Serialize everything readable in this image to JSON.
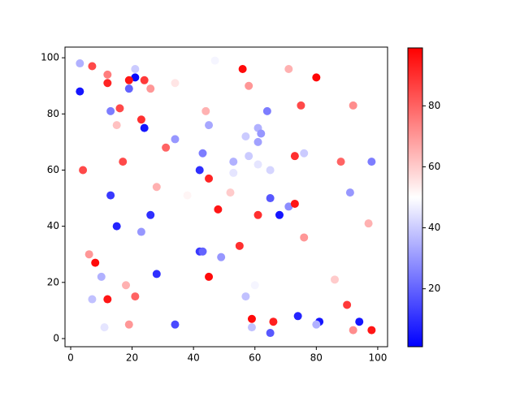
{
  "chart_data": {
    "type": "scatter",
    "x": [
      3,
      7,
      3,
      12,
      12,
      21,
      21,
      19,
      24,
      26,
      19,
      34,
      47,
      56,
      71,
      80,
      58,
      13,
      16,
      23,
      24,
      15,
      44,
      45,
      34,
      31,
      64,
      75,
      92,
      61,
      62,
      57,
      61,
      76,
      73,
      58,
      53,
      61,
      65,
      53,
      43,
      11,
      17,
      42,
      45,
      88,
      98,
      4,
      28,
      38,
      52,
      13,
      65,
      91,
      71,
      73,
      48,
      26,
      61,
      68,
      15,
      97,
      23,
      76,
      42,
      43,
      55,
      49,
      6,
      8,
      28,
      45,
      10,
      86,
      18,
      60,
      57,
      7,
      21,
      12,
      90,
      74,
      59,
      66,
      81,
      94,
      34,
      19,
      11,
      59,
      80,
      92,
      98,
      65
    ],
    "y": [
      98,
      97,
      88,
      94,
      91,
      96,
      93,
      92,
      92,
      89,
      89,
      91,
      99,
      96,
      96,
      93,
      90,
      81,
      82,
      78,
      75,
      76,
      81,
      76,
      71,
      68,
      81,
      83,
      83,
      75,
      73,
      72,
      70,
      66,
      65,
      65,
      63,
      62,
      60,
      59,
      66,
      65,
      63,
      60,
      57,
      63,
      63,
      60,
      54,
      51,
      52,
      51,
      50,
      52,
      47,
      48,
      46,
      44,
      44,
      44,
      40,
      41,
      38,
      36,
      31,
      31,
      33,
      29,
      30,
      27,
      23,
      22,
      22,
      21,
      19,
      19,
      15,
      14,
      15,
      14,
      12,
      8,
      7,
      6,
      6,
      6,
      5,
      5,
      4,
      4,
      5,
      3,
      3,
      2
    ],
    "c": [
      35,
      85,
      5,
      75,
      92,
      40,
      3,
      95,
      88,
      70,
      20,
      55,
      48,
      97,
      65,
      98,
      70,
      25,
      85,
      90,
      5,
      62,
      65,
      33,
      30,
      80,
      25,
      85,
      72,
      35,
      30,
      40,
      32,
      40,
      90,
      40,
      35,
      45,
      42,
      45,
      25,
      50,
      85,
      10,
      92,
      80,
      25,
      85,
      65,
      52,
      60,
      12,
      18,
      30,
      28,
      95,
      95,
      10,
      90,
      5,
      8,
      65,
      30,
      70,
      12,
      20,
      90,
      30,
      70,
      97,
      10,
      97,
      35,
      60,
      65,
      48,
      38,
      38,
      80,
      95,
      88,
      8,
      97,
      93,
      5,
      5,
      15,
      70,
      45,
      38,
      35,
      72,
      95,
      18
    ],
    "colormap": "bwr",
    "clim": [
      1,
      99
    ],
    "xlim": [
      -1.85,
      103.2
    ],
    "ylim": [
      -2.9,
      103.8
    ],
    "xticks": [
      0,
      20,
      40,
      60,
      80,
      100
    ],
    "yticks": [
      0,
      20,
      40,
      60,
      80,
      100
    ],
    "cticks": [
      20,
      40,
      60,
      80
    ]
  }
}
